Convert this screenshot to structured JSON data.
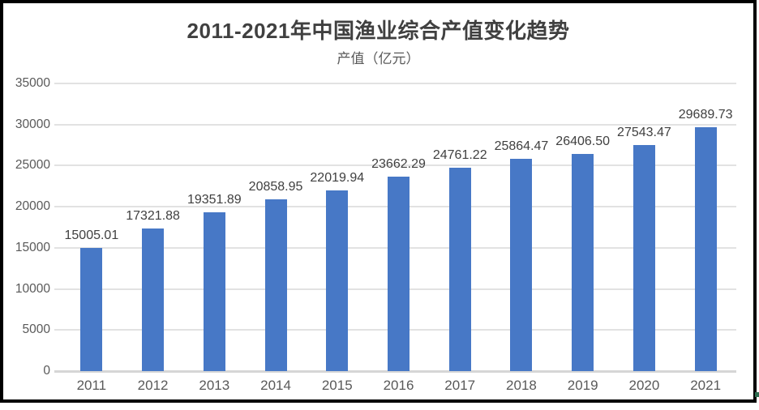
{
  "chart_data": {
    "type": "bar",
    "title": "2011-2021年中国渔业综合产值变化趋势",
    "subtitle": "产值（亿元）",
    "categories": [
      "2011",
      "2012",
      "2013",
      "2014",
      "2015",
      "2016",
      "2017",
      "2018",
      "2019",
      "2020",
      "2021"
    ],
    "values": [
      15005.01,
      17321.88,
      19351.89,
      20858.95,
      22019.94,
      23662.29,
      24761.22,
      25864.47,
      26406.5,
      27543.47,
      29689.73
    ],
    "value_labels": [
      "15005.01",
      "17321.88",
      "19351.89",
      "20858.95",
      "22019.94",
      "23662.29",
      "24761.22",
      "25864.47",
      "26406.50",
      "27543.47",
      "29689.73"
    ],
    "xlabel": "",
    "ylabel": "",
    "ylim": [
      0,
      35000
    ],
    "yticks": [
      0,
      5000,
      10000,
      15000,
      20000,
      25000,
      30000,
      35000
    ],
    "ytick_labels": [
      "0",
      "5000",
      "10000",
      "15000",
      "20000",
      "25000",
      "30000",
      "35000"
    ],
    "grid": true,
    "legend_position": "none",
    "colors": {
      "bar": "#4778c6",
      "gridline": "#e2e2e2",
      "axis_baseline": "#d6d6d6",
      "title": "#404040",
      "subtitle": "#595959",
      "tick_label": "#595959",
      "data_label": "#404040",
      "frame_border": "#000000"
    }
  }
}
